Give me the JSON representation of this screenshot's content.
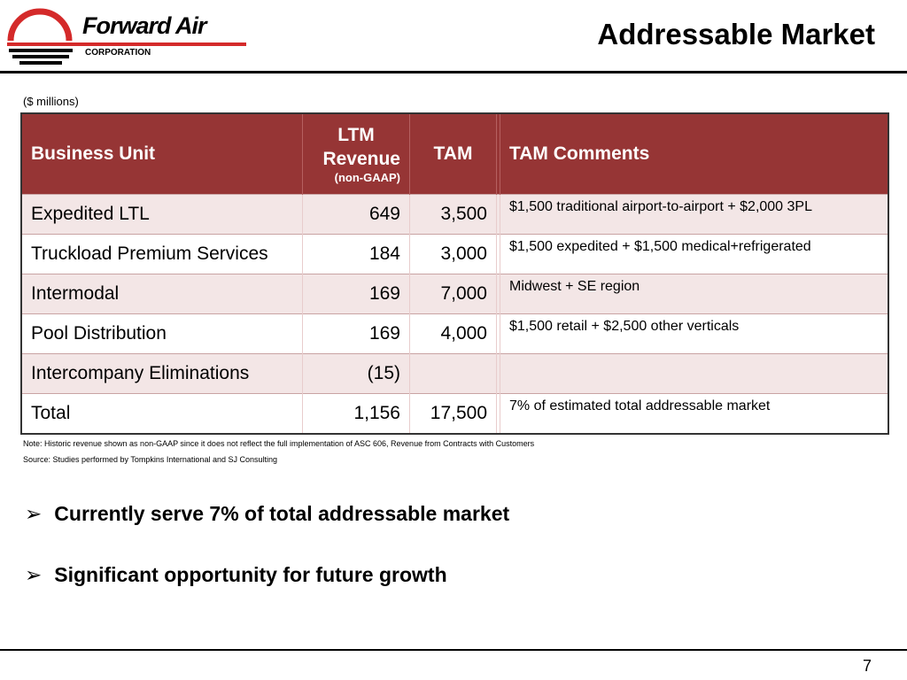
{
  "header": {
    "logo_text": "Forward Air",
    "logo_sub": "CORPORATION",
    "title": "Addressable Market"
  },
  "units": "($ millions)",
  "table": {
    "headers": {
      "unit": "Business Unit",
      "ltm_line1": "LTM",
      "ltm_line2": "Revenue",
      "ltm_sub": "(non-GAAP)",
      "tam": "TAM",
      "comments": "TAM Comments"
    },
    "rows": [
      {
        "unit": "Expedited LTL",
        "ltm": "649",
        "tam": "3,500",
        "comment": "$1,500 traditional airport-to-airport + $2,000 3PL"
      },
      {
        "unit": "Truckload Premium Services",
        "ltm": "184",
        "tam": "3,000",
        "comment": "$1,500 expedited + $1,500 medical+refrigerated"
      },
      {
        "unit": "Intermodal",
        "ltm": "169",
        "tam": "7,000",
        "comment": "Midwest + SE region"
      },
      {
        "unit": "Pool Distribution",
        "ltm": "169",
        "tam": "4,000",
        "comment": "$1,500 retail + $2,500 other verticals"
      },
      {
        "unit": "Intercompany Eliminations",
        "ltm": "(15)",
        "tam": "",
        "comment": ""
      },
      {
        "unit": "Total",
        "ltm": "1,156",
        "tam": "17,500",
        "comment": "7% of estimated total addressable market"
      }
    ]
  },
  "notes": {
    "note": "Note:  Historic revenue shown as non-GAAP since it does not reflect the full implementation of ASC 606, Revenue from Contracts with Customers",
    "source": "Source: Studies  performed by Tompkins International and SJ Consulting"
  },
  "bullets": [
    "Currently serve 7% of total addressable market",
    "Significant opportunity for future growth"
  ],
  "page_number": "7",
  "colors": {
    "header_bg": "#963535",
    "alt_row": "#f3e6e6",
    "logo_red": "#d42a2a"
  }
}
